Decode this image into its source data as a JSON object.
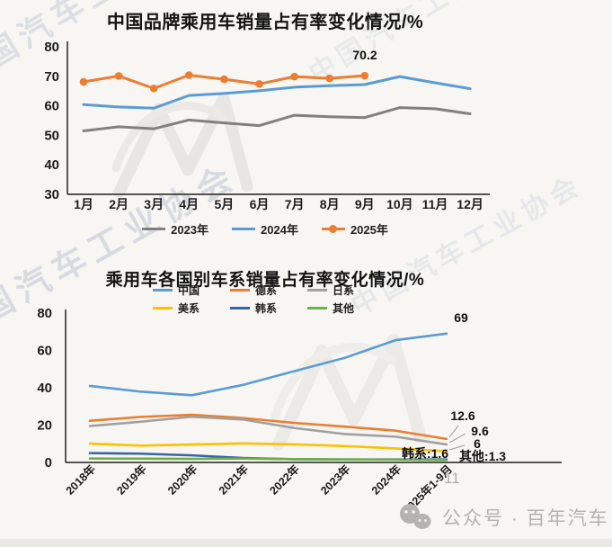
{
  "page": {
    "page_number": "11",
    "footer_label": "公众号 · 百年汽车",
    "watermark_text": "中国汽车工业协会"
  },
  "chart_data": [
    {
      "type": "line",
      "title": "中国品牌乘用车销量占有率变化情况/%",
      "categories": [
        "1月",
        "2月",
        "3月",
        "4月",
        "5月",
        "6月",
        "7月",
        "8月",
        "9月",
        "10月",
        "11月",
        "12月"
      ],
      "series": [
        {
          "name": "2023年",
          "color": "#808080",
          "values": [
            51.5,
            52.9,
            52.2,
            55.2,
            54.2,
            53.3,
            56.8,
            56.3,
            56.0,
            59.4,
            59.0,
            57.3
          ]
        },
        {
          "name": "2024年",
          "color": "#5b9bd5",
          "values": [
            60.4,
            59.6,
            59.2,
            63.5,
            64.2,
            65.1,
            66.3,
            66.8,
            67.2,
            69.9,
            67.8,
            65.8
          ]
        },
        {
          "name": "2025年",
          "color": "#ed7d31",
          "marker": true,
          "values": [
            68.1,
            70.1,
            65.9,
            70.4,
            69.0,
            67.4,
            69.9,
            69.3,
            70.2
          ]
        }
      ],
      "annotations": [
        {
          "text": "70.2",
          "note": "2025年 9月 value label"
        }
      ],
      "ylim": [
        30,
        80
      ],
      "yticks": [
        30,
        40,
        50,
        60,
        70,
        80
      ],
      "grid": false,
      "legend_position": "bottom"
    },
    {
      "type": "line",
      "title": "乘用车各国别车系销量占有率变化情况/%",
      "categories": [
        "2018年",
        "2019年",
        "2020年",
        "2021年",
        "2022年",
        "2023年",
        "2024年",
        "2025年1-9月"
      ],
      "series": [
        {
          "name": "中国",
          "color": "#5b9bd5",
          "values": [
            41,
            37.9,
            36,
            41.5,
            48.8,
            56,
            65.5,
            69
          ]
        },
        {
          "name": "德系",
          "color": "#ed7d31",
          "values": [
            22.3,
            24.4,
            25.5,
            23.8,
            21.2,
            19.2,
            17,
            12.6
          ]
        },
        {
          "name": "日系",
          "color": "#a0a0a0",
          "values": [
            19.5,
            21.8,
            24.5,
            23,
            18.5,
            15.2,
            13.8,
            9.6
          ]
        },
        {
          "name": "美系",
          "color": "#ffc000",
          "values": [
            10.1,
            9,
            9.6,
            10.2,
            9.7,
            8.8,
            7.5,
            6
          ]
        },
        {
          "name": "韩系",
          "color": "#3a62a8",
          "values": [
            5,
            4.7,
            3.8,
            2.4,
            1.7,
            1.6,
            1.6,
            1.6
          ]
        },
        {
          "name": "其他",
          "color": "#6fad47",
          "values": [
            2.1,
            2,
            1.9,
            2.1,
            1.8,
            1.6,
            1.5,
            1.3
          ]
        }
      ],
      "annotations": [
        {
          "text": "69"
        },
        {
          "text": "12.6"
        },
        {
          "text": "9.6"
        },
        {
          "text": "6"
        },
        {
          "text": "韩系:1.6"
        },
        {
          "text": "其他:1.3"
        }
      ],
      "ylim": [
        0,
        80
      ],
      "yticks": [
        0,
        20,
        40,
        60,
        80
      ],
      "grid": false,
      "legend_position": "top"
    }
  ]
}
